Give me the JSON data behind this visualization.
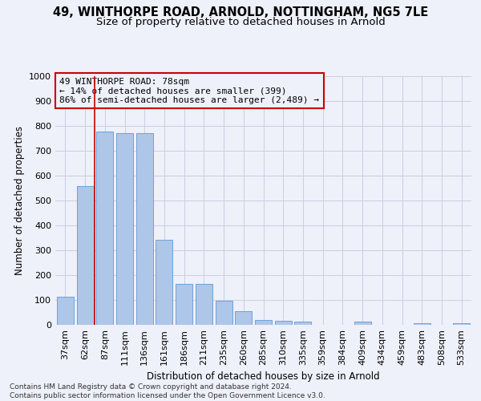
{
  "title_line1": "49, WINTHORPE ROAD, ARNOLD, NOTTINGHAM, NG5 7LE",
  "title_line2": "Size of property relative to detached houses in Arnold",
  "xlabel": "Distribution of detached houses by size in Arnold",
  "ylabel": "Number of detached properties",
  "categories": [
    "37sqm",
    "62sqm",
    "87sqm",
    "111sqm",
    "136sqm",
    "161sqm",
    "186sqm",
    "211sqm",
    "235sqm",
    "260sqm",
    "285sqm",
    "310sqm",
    "335sqm",
    "359sqm",
    "384sqm",
    "409sqm",
    "434sqm",
    "459sqm",
    "483sqm",
    "508sqm",
    "533sqm"
  ],
  "values": [
    113,
    558,
    778,
    770,
    770,
    343,
    163,
    163,
    98,
    55,
    20,
    15,
    13,
    0,
    0,
    12,
    0,
    0,
    8,
    0,
    8
  ],
  "bar_color": "#aec6e8",
  "bar_edge_color": "#5b9bd5",
  "grid_color": "#c8cfe0",
  "background_color": "#eef0fa",
  "vline_color": "#cc0000",
  "vline_position": 1.5,
  "annotation_text": "49 WINTHORPE ROAD: 78sqm\n← 14% of detached houses are smaller (399)\n86% of semi-detached houses are larger (2,489) →",
  "annotation_box_color": "#cc0000",
  "ylim": [
    0,
    1000
  ],
  "yticks": [
    0,
    100,
    200,
    300,
    400,
    500,
    600,
    700,
    800,
    900,
    1000
  ],
  "footer": "Contains HM Land Registry data © Crown copyright and database right 2024.\nContains public sector information licensed under the Open Government Licence v3.0.",
  "title_fontsize": 10.5,
  "subtitle_fontsize": 9.5,
  "axis_label_fontsize": 8.5,
  "tick_fontsize": 8,
  "annotation_fontsize": 8,
  "footer_fontsize": 6.5
}
